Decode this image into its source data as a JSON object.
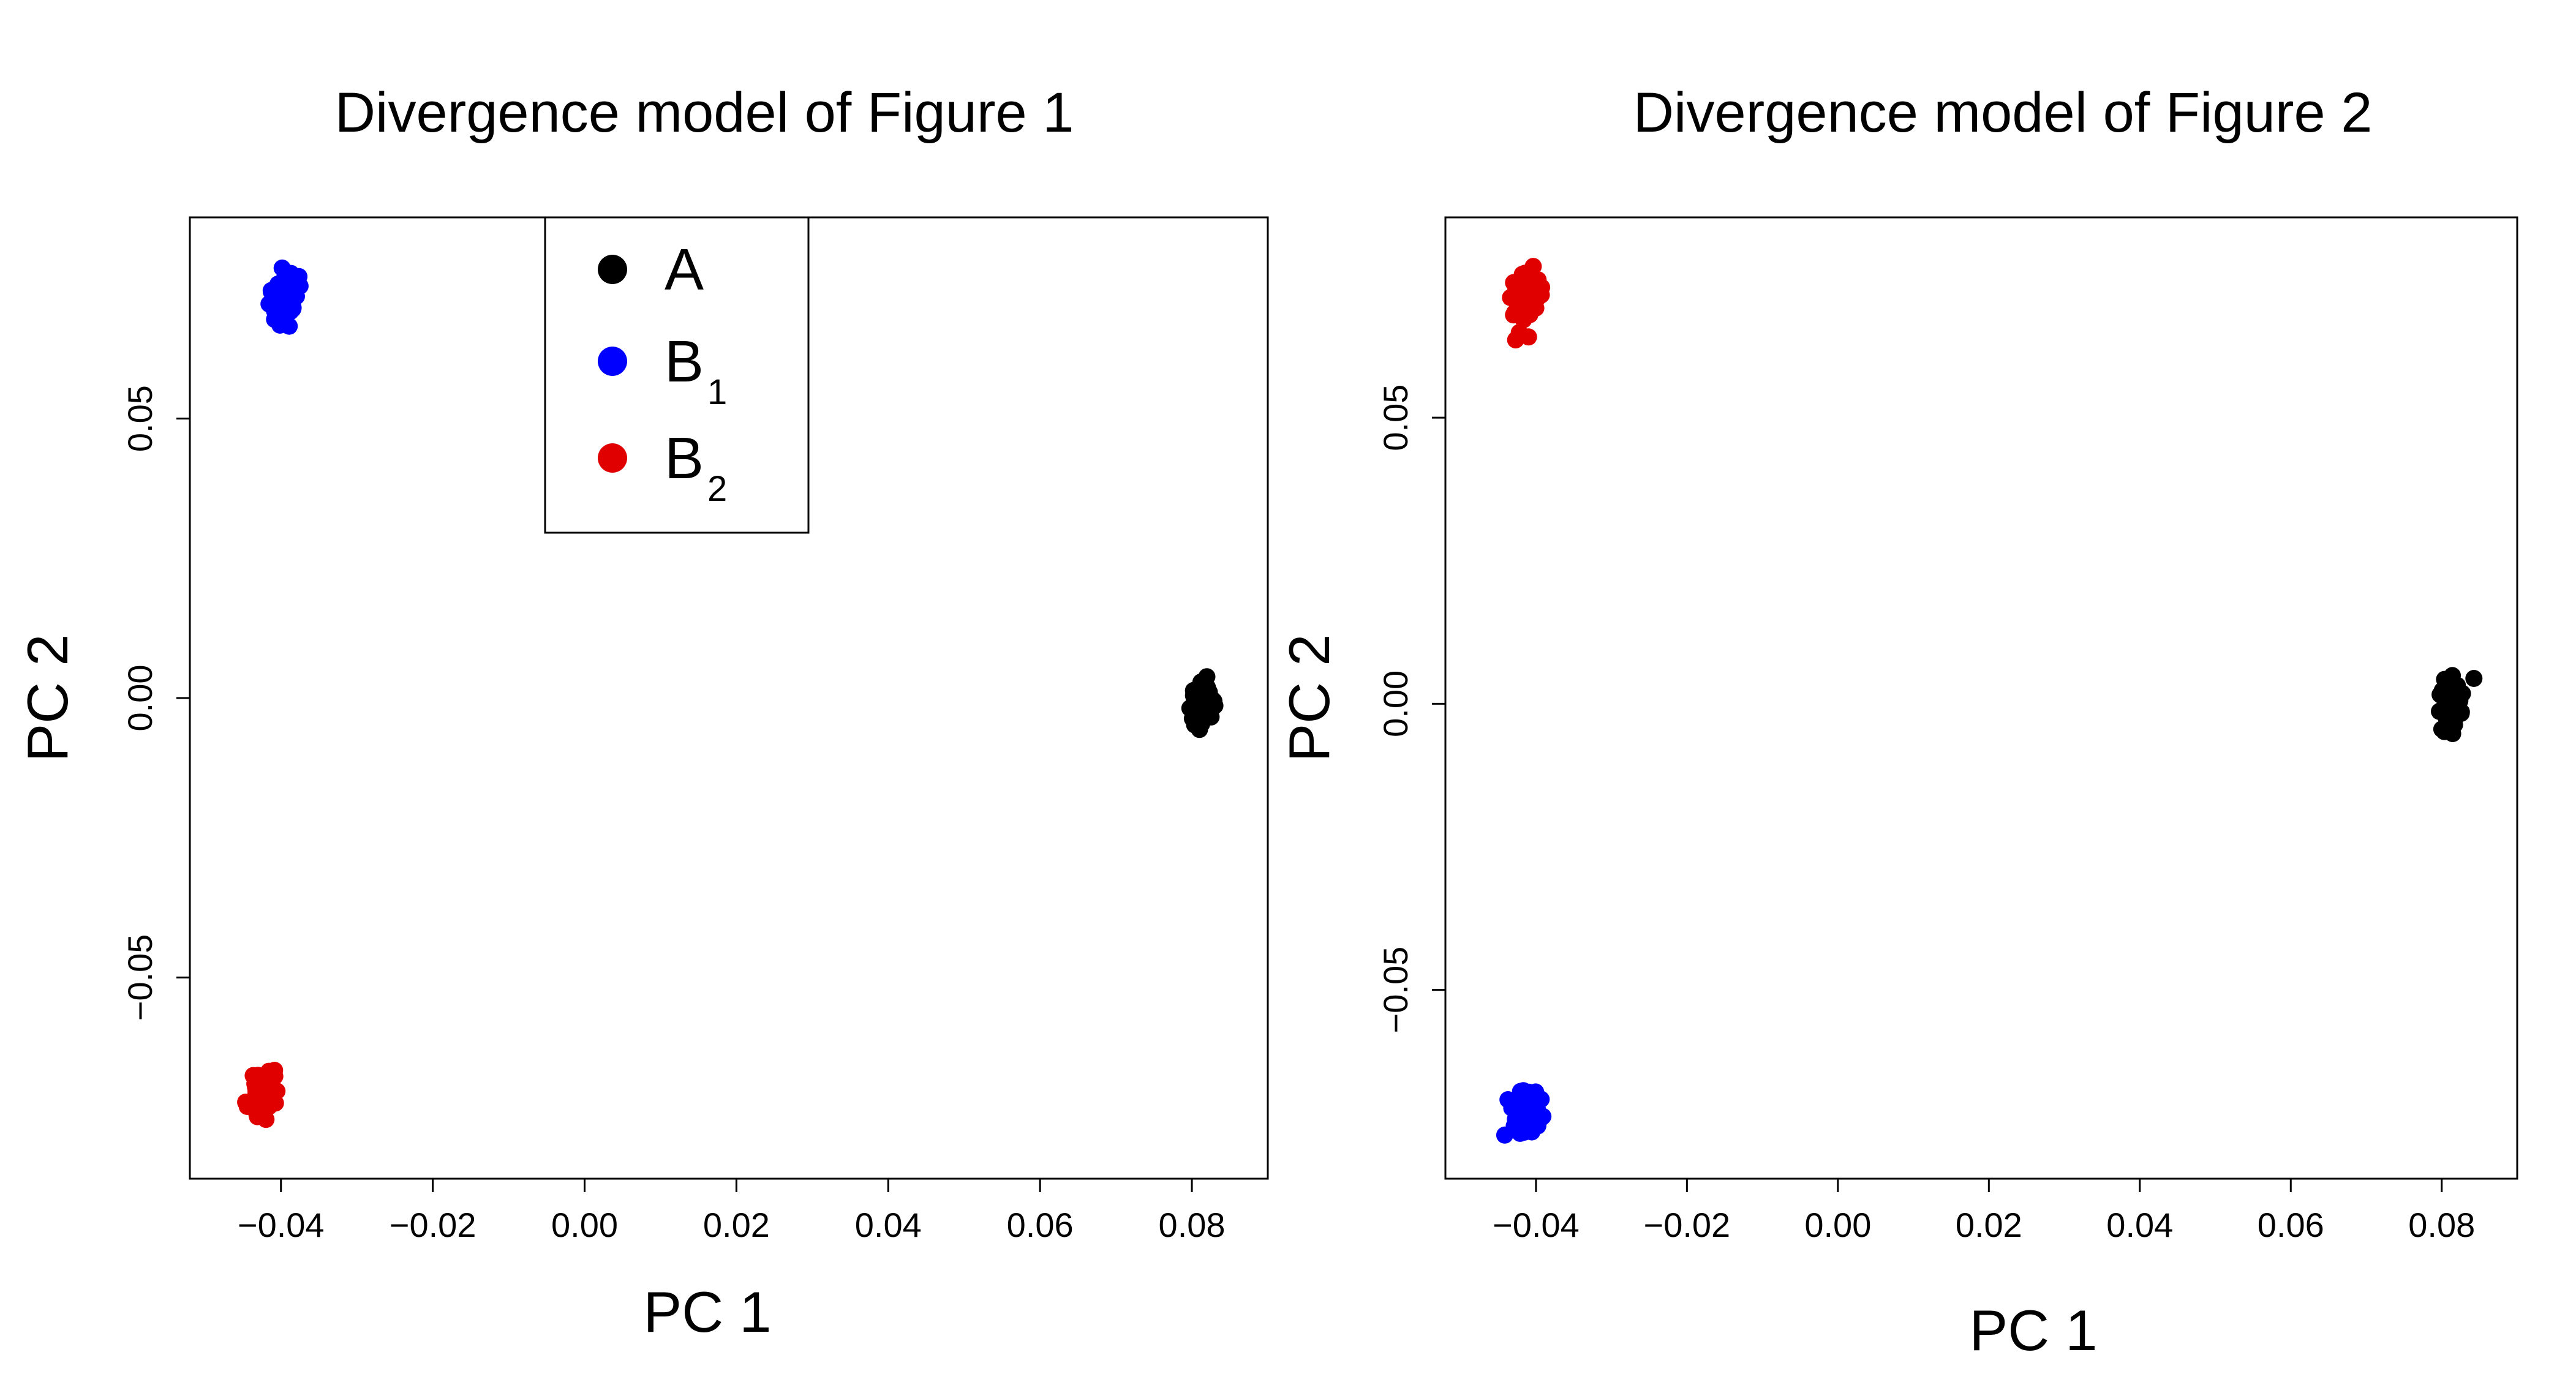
{
  "chart_data": [
    {
      "type": "scatter",
      "title": "Divergence model of Figure 1",
      "xlabel": "PC 1",
      "ylabel": "PC 2",
      "xlim": [
        -0.052,
        0.09
      ],
      "ylim": [
        -0.086,
        0.086
      ],
      "x_ticks": [
        -0.04,
        -0.02,
        0.0,
        0.02,
        0.04,
        0.06,
        0.08
      ],
      "x_tick_labels": [
        "−0.04",
        "−0.02",
        "0.00",
        "0.02",
        "0.04",
        "0.06",
        "0.08"
      ],
      "y_ticks": [
        -0.05,
        0.0,
        0.05
      ],
      "y_tick_labels": [
        "−0.05",
        "0.00",
        "0.05"
      ],
      "grid": false,
      "legend": {
        "placement": "top",
        "entries": [
          {
            "label": "A",
            "sub": ""
          },
          {
            "label": "B",
            "sub": "1"
          },
          {
            "label": "B",
            "sub": "2"
          }
        ]
      },
      "series": [
        {
          "legend_index": 0,
          "color": "#000000",
          "center": [
            0.0812,
            -0.0015
          ],
          "spread": [
            0.0008,
            0.0025
          ],
          "n": 60
        },
        {
          "legend_index": 1,
          "color": "#0000ff",
          "center": [
            -0.0393,
            0.0715
          ],
          "spread": [
            0.0009,
            0.0025
          ],
          "n": 60
        },
        {
          "legend_index": 2,
          "color": "#e00000",
          "center": [
            -0.0422,
            -0.0705
          ],
          "spread": [
            0.001,
            0.0022
          ],
          "n": 60
        }
      ]
    },
    {
      "type": "scatter",
      "title": "Divergence model of Figure 2",
      "xlabel": "PC 1",
      "ylabel": "PC 2",
      "xlim": [
        -0.052,
        0.09
      ],
      "ylim": [
        -0.083,
        0.085
      ],
      "x_ticks": [
        -0.04,
        -0.02,
        0.0,
        0.02,
        0.04,
        0.06,
        0.08
      ],
      "x_tick_labels": [
        "−0.04",
        "−0.02",
        "0.00",
        "0.02",
        "0.04",
        "0.06",
        "0.08"
      ],
      "y_ticks": [
        -0.05,
        0.0,
        0.05
      ],
      "y_tick_labels": [
        "−0.05",
        "0.00",
        "0.05"
      ],
      "grid": false,
      "series": [
        {
          "color": "#000000",
          "center": [
            0.0812,
            0.0002
          ],
          "spread": [
            0.0009,
            0.0025
          ],
          "n": 60
        },
        {
          "color": "#e00000",
          "center": [
            -0.0415,
            0.0705
          ],
          "spread": [
            0.001,
            0.0025
          ],
          "n": 60
        },
        {
          "color": "#0000ff",
          "center": [
            -0.0413,
            -0.071
          ],
          "spread": [
            0.001,
            0.0022
          ],
          "n": 60
        }
      ]
    }
  ]
}
